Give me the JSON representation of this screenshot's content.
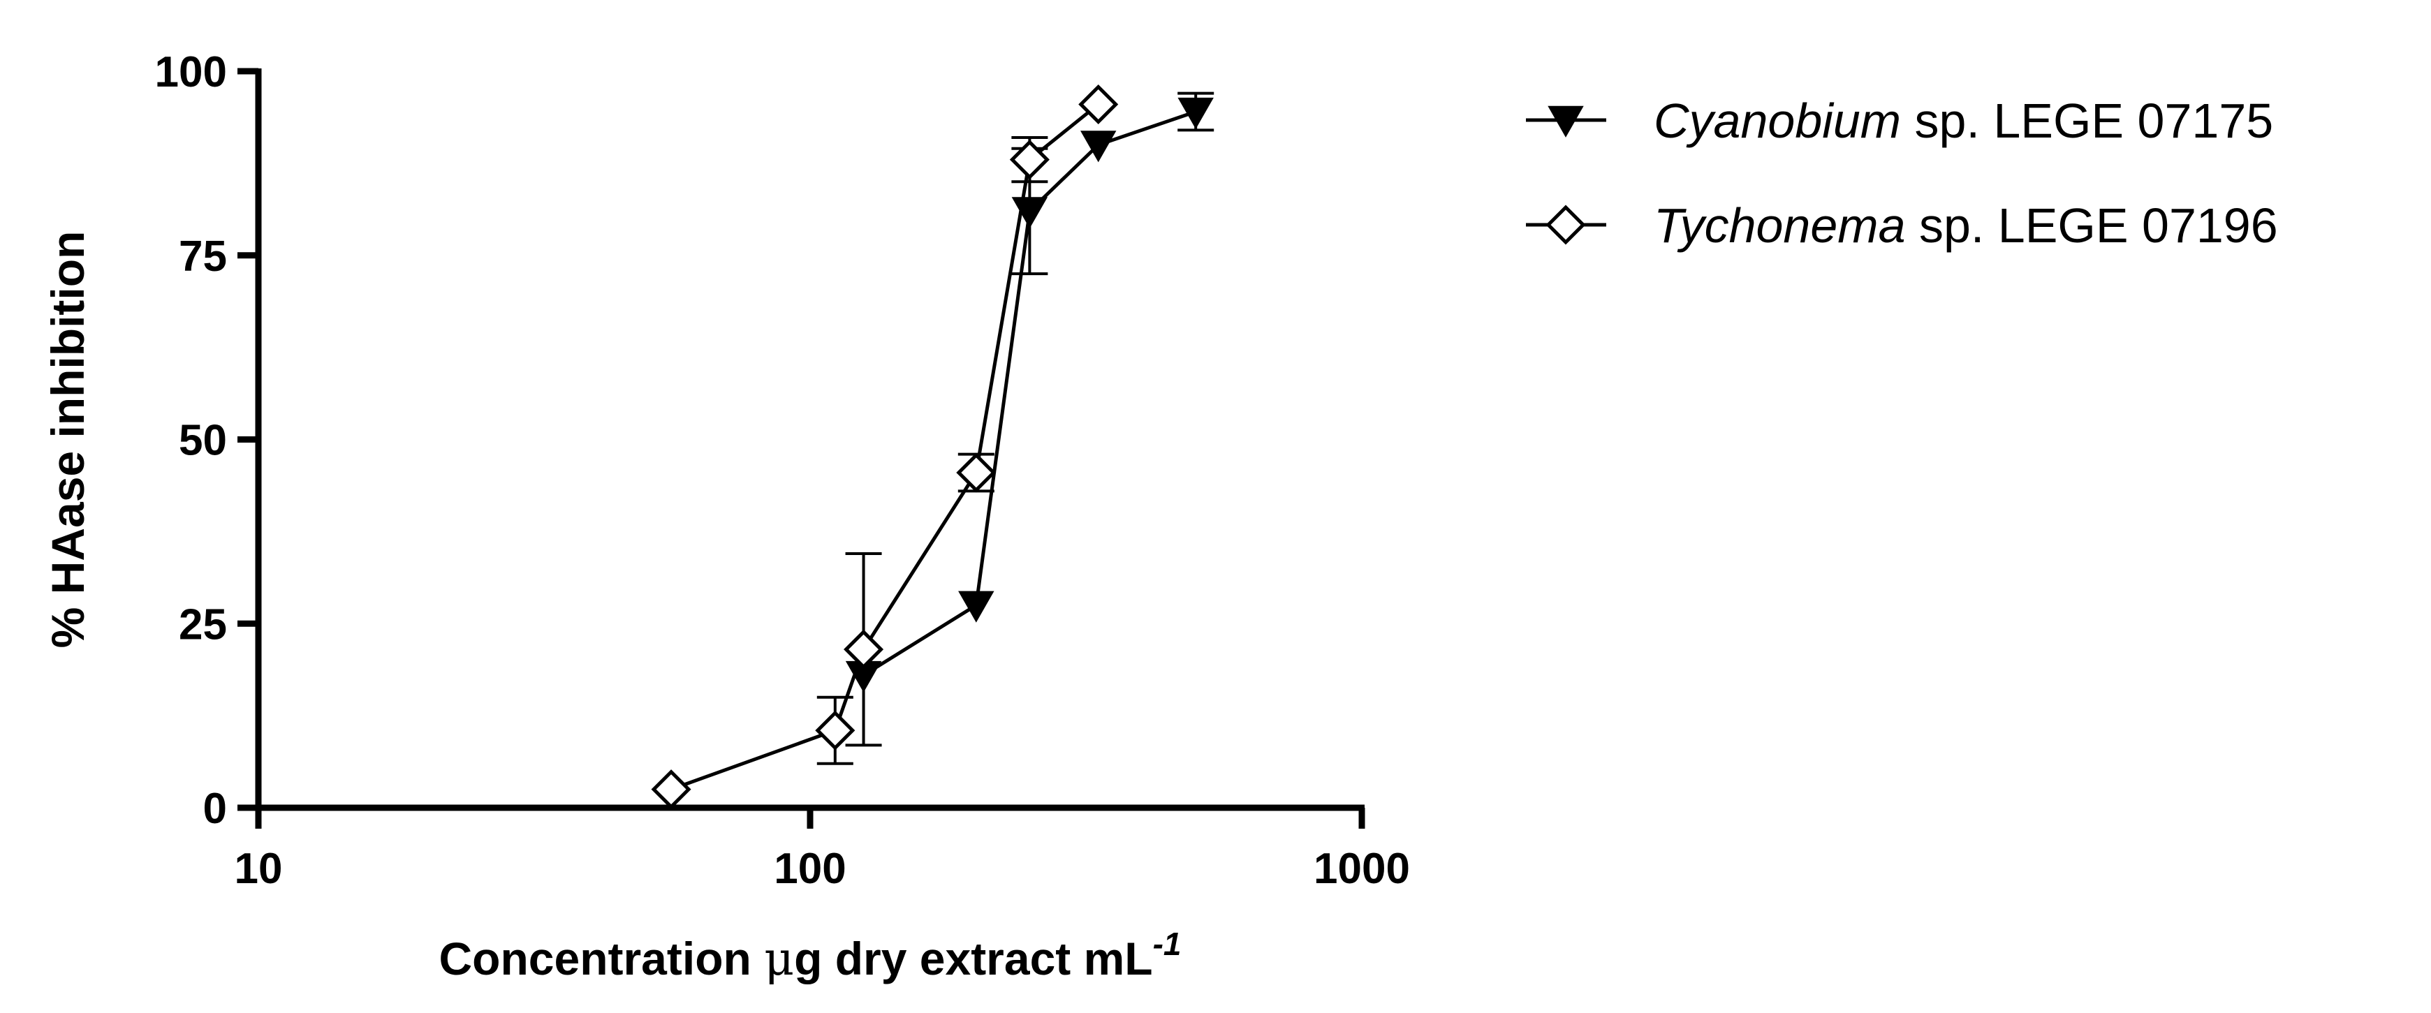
{
  "chart_data": {
    "type": "line",
    "title": "",
    "xlabel": {
      "prefix": "Concentration ",
      "unit_symbol": "μ",
      "middle": "g dry extract mL",
      "superscript": "-1"
    },
    "ylabel": "% HAase inhibition",
    "x_scale": "log",
    "xlim": [
      10,
      1000
    ],
    "ylim": [
      0,
      100
    ],
    "x_ticks": [
      10,
      100,
      1000
    ],
    "x_tick_labels": [
      "10",
      "100",
      "1000"
    ],
    "y_ticks": [
      0,
      25,
      50,
      75,
      100
    ],
    "y_tick_labels": [
      "0",
      "25",
      "50",
      "75",
      "100"
    ],
    "grid": false,
    "legend_position": "top-right, outside plot",
    "series": [
      {
        "name_italic": "Cyanobium",
        "name_rest": " sp. LEGE 07175",
        "marker": "filled-down-triangle",
        "points": [
          {
            "x": 125,
            "y": 18,
            "err": 0
          },
          {
            "x": 200,
            "y": 27.5,
            "err": 0
          },
          {
            "x": 250,
            "y": 81,
            "err": 8.5
          },
          {
            "x": 333,
            "y": 90,
            "err": 0
          },
          {
            "x": 500,
            "y": 94.5,
            "err": 2.5
          }
        ]
      },
      {
        "name_italic": "Tychonema",
        "name_rest": " sp. LEGE 07196",
        "marker": "open-diamond",
        "points": [
          {
            "x": 56,
            "y": 2.5,
            "err": 0
          },
          {
            "x": 111,
            "y": 10.5,
            "err": 4.5
          },
          {
            "x": 125,
            "y": 21.5,
            "err": 13
          },
          {
            "x": 200,
            "y": 45.5,
            "err": 2.5
          },
          {
            "x": 250,
            "y": 88,
            "err": 3
          },
          {
            "x": 333,
            "y": 95.5,
            "err": 0
          }
        ]
      }
    ]
  }
}
